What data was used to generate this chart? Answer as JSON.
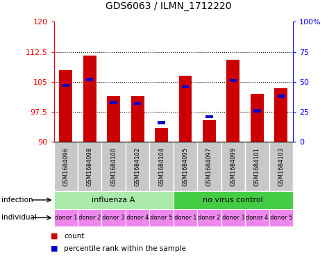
{
  "title": "GDS6063 / ILMN_1712220",
  "samples": [
    "GSM1684096",
    "GSM1684098",
    "GSM1684100",
    "GSM1684102",
    "GSM1684104",
    "GSM1684095",
    "GSM1684097",
    "GSM1684099",
    "GSM1684101",
    "GSM1684103"
  ],
  "count_values": [
    108.0,
    111.5,
    101.5,
    101.5,
    93.5,
    106.5,
    95.5,
    110.5,
    102.0,
    103.5
  ],
  "percentile_values": [
    47,
    52,
    33,
    32,
    16,
    46,
    21,
    51,
    26,
    38
  ],
  "ylim_left": [
    90,
    120
  ],
  "ylim_right": [
    0,
    100
  ],
  "yticks_left": [
    90,
    97.5,
    105,
    112.5,
    120
  ],
  "yticks_right": [
    0,
    25,
    50,
    75,
    100
  ],
  "bar_color": "#cc0000",
  "percentile_color": "#0000cc",
  "infection_groups": [
    {
      "label": "influenza A",
      "start": 0,
      "end": 5,
      "color": "#aaeaaa"
    },
    {
      "label": "no virus control",
      "start": 5,
      "end": 10,
      "color": "#44cc44"
    }
  ],
  "individual_labels": [
    "donor 1",
    "donor 2",
    "donor 3",
    "donor 4",
    "donor 5",
    "donor 1",
    "donor 2",
    "donor 3",
    "donor 4",
    "donor 5"
  ],
  "individual_color": "#ee88ee",
  "sample_bg_color": "#c8c8c8",
  "bar_width": 0.55,
  "legend_count_label": "count",
  "legend_percentile_label": "percentile rank within the sample",
  "infection_label": "infection",
  "individual_label": "individual"
}
